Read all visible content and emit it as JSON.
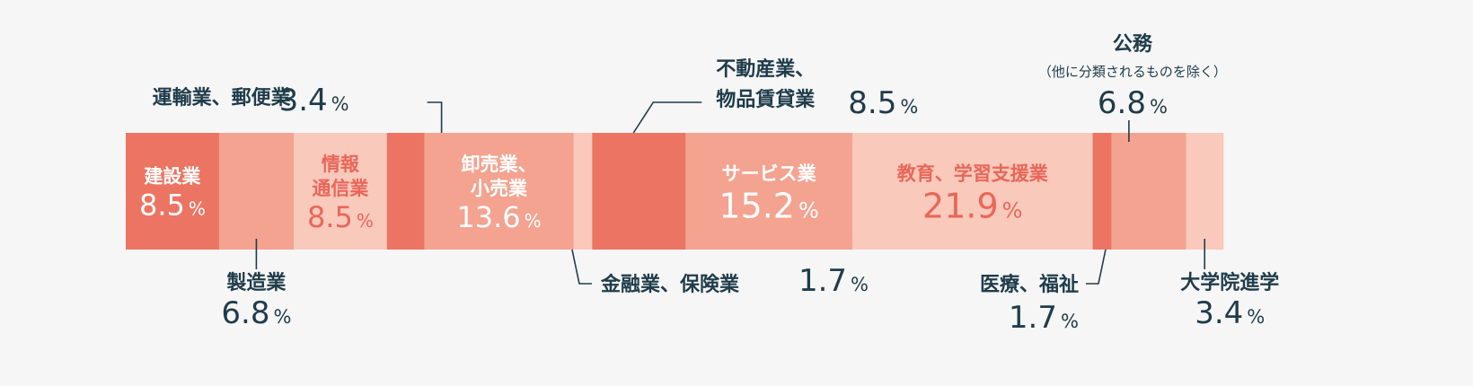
{
  "chart_data": {
    "type": "bar",
    "orientation": "horizontal-stacked-100",
    "unit": "%",
    "colors": {
      "dark": "#ec7462",
      "mid": "#f3a390",
      "light": "#f9c9bb",
      "text_dark": "#1f3c4a",
      "text_white": "#ffffff",
      "text_red": "#e8675a",
      "leader": "#1f3c4a"
    },
    "segments": [
      {
        "name": "建設業",
        "value": 8.5,
        "shade": "dark",
        "value_text": "8.5",
        "pct": "%",
        "label_pos": "inside",
        "label_color": "text_white"
      },
      {
        "name": "製造業",
        "value": 6.8,
        "shade": "mid",
        "value_text": "6.8",
        "pct": "%",
        "label_pos": "below",
        "label_color": "text_dark"
      },
      {
        "name": "情報\n通信業",
        "value": 8.5,
        "shade": "light",
        "value_text": "8.5",
        "pct": "%",
        "label_pos": "inside",
        "label_color": "text_red"
      },
      {
        "name": "運輸業、郵便業",
        "value": 3.4,
        "shade": "dark",
        "value_text": "3.4",
        "pct": "%",
        "label_pos": "above-left",
        "label_color": "text_dark"
      },
      {
        "name": "卸売業、\n小売業",
        "value": 13.6,
        "shade": "mid",
        "value_text": "13.6",
        "pct": "%",
        "label_pos": "inside",
        "label_color": "text_white"
      },
      {
        "name": "金融業、保険業",
        "value": 1.7,
        "shade": "light",
        "value_text": "1.7",
        "pct": "%",
        "label_pos": "below-right",
        "label_color": "text_dark"
      },
      {
        "name": "不動産業、\n物品賃貸業",
        "value": 8.5,
        "shade": "dark",
        "value_text": "8.5",
        "pct": "%",
        "label_pos": "above-right",
        "label_color": "text_dark"
      },
      {
        "name": "サービス業",
        "value": 15.2,
        "shade": "mid",
        "value_text": "15.2",
        "pct": "%",
        "label_pos": "inside",
        "label_color": "text_white"
      },
      {
        "name": "教育、学習支援業",
        "value": 21.9,
        "shade": "light",
        "value_text": "21.9",
        "pct": "%",
        "label_pos": "inside",
        "label_color": "text_red"
      },
      {
        "name": "医療、福祉",
        "value": 1.7,
        "shade": "dark",
        "value_text": "1.7",
        "pct": "%",
        "label_pos": "below-left",
        "label_color": "text_dark"
      },
      {
        "name": "公務",
        "sub": "（他に分類されるものを除く）",
        "value": 6.8,
        "shade": "mid",
        "value_text": "6.8",
        "pct": "%",
        "label_pos": "above",
        "label_color": "text_dark"
      },
      {
        "name": "大学院進学",
        "value": 3.4,
        "shade": "light",
        "value_text": "3.4",
        "pct": "%",
        "label_pos": "below",
        "label_color": "text_dark"
      }
    ]
  }
}
